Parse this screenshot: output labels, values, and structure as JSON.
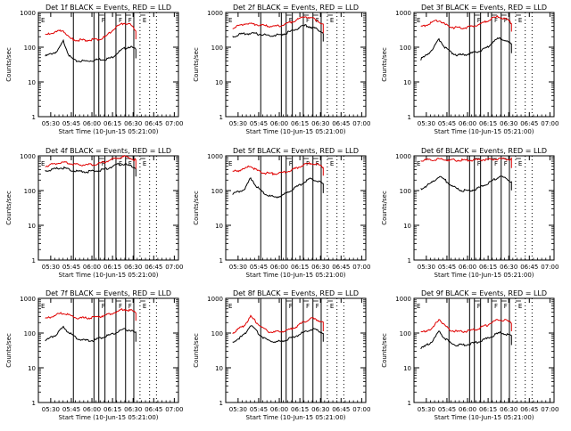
{
  "figure": {
    "background": "#ffffff",
    "axis_color": "#000000",
    "events_color": "#000000",
    "lld_color": "#e00000"
  },
  "chart_data": [
    {
      "type": "line",
      "title": "Det 1f BLACK = Events, RED = LLD",
      "xlabel": "Start Time (10-Jun-15 05:21:00)",
      "ylabel": "Counts/sec",
      "y_scale": "log",
      "ylim": [
        1,
        1000
      ],
      "y_ticks": [
        "1",
        "10",
        "100",
        "1000"
      ],
      "x_ticks": [
        "05:30",
        "05:45",
        "06:00",
        "06:15",
        "06:30",
        "06:45",
        "07:00"
      ],
      "solid_markers": [
        25.5,
        40.5,
        44,
        48.5,
        56.5,
        63.5,
        69.5
      ],
      "dotted_markers": [
        74,
        81,
        86
      ],
      "flag_letters": [
        "F",
        "F",
        "F",
        "E"
      ],
      "series": [
        {
          "name": "Events",
          "color": "#000000",
          "values": [
            55,
            65,
            75,
            150,
            55,
            40,
            40,
            40,
            42,
            45,
            45,
            50,
            70,
            90,
            105,
            85
          ]
        },
        {
          "name": "LLD",
          "color": "#e00000",
          "values": [
            220,
            250,
            280,
            300,
            180,
            160,
            160,
            160,
            165,
            170,
            200,
            300,
            400,
            500,
            450,
            300
          ]
        }
      ]
    },
    {
      "type": "line",
      "title": "Det 2f BLACK = Events, RED = LLD",
      "xlabel": "Start Time (10-Jun-15 05:21:00)",
      "ylabel": "Counts/sec",
      "y_scale": "log",
      "ylim": [
        1,
        1000
      ],
      "y_ticks": [
        "1",
        "10",
        "100",
        "1000"
      ],
      "x_ticks": [
        "05:30",
        "05:45",
        "06:00",
        "06:15",
        "06:30",
        "06:45",
        "07:00"
      ],
      "solid_markers": [
        25.5,
        40.5,
        44,
        48.5,
        56.5,
        63.5,
        69.5
      ],
      "dotted_markers": [
        74,
        81,
        86
      ],
      "flag_letters": [
        "F",
        "F",
        "F",
        "E"
      ],
      "series": [
        {
          "name": "Events",
          "color": "#000000",
          "values": [
            200,
            230,
            240,
            250,
            240,
            230,
            220,
            220,
            230,
            260,
            300,
            360,
            420,
            380,
            330,
            260
          ]
        },
        {
          "name": "LLD",
          "color": "#e00000",
          "values": [
            350,
            420,
            470,
            480,
            450,
            420,
            400,
            400,
            420,
            480,
            560,
            650,
            760,
            700,
            600,
            450
          ]
        }
      ]
    },
    {
      "type": "line",
      "title": "Det 3f BLACK = Events, RED = LLD",
      "xlabel": "Start Time (10-Jun-15 05:21:00)",
      "ylabel": "Counts/sec",
      "y_scale": "log",
      "ylim": [
        1,
        1000
      ],
      "y_ticks": [
        "1",
        "10",
        "100",
        "1000"
      ],
      "x_ticks": [
        "05:30",
        "05:45",
        "06:00",
        "06:15",
        "06:30",
        "06:45",
        "07:00"
      ],
      "solid_markers": [
        25.5,
        40.5,
        44,
        48.5,
        56.5,
        63.5,
        69.5
      ],
      "dotted_markers": [
        74,
        81,
        86
      ],
      "flag_letters": [
        "F",
        "F",
        "F",
        "E"
      ],
      "series": [
        {
          "name": "Events",
          "color": "#000000",
          "values": [
            45,
            60,
            90,
            170,
            100,
            70,
            60,
            60,
            65,
            70,
            80,
            100,
            150,
            180,
            160,
            120
          ]
        },
        {
          "name": "LLD",
          "color": "#e00000",
          "values": [
            380,
            450,
            520,
            600,
            450,
            380,
            360,
            360,
            380,
            420,
            480,
            560,
            700,
            750,
            650,
            500
          ]
        }
      ]
    },
    {
      "type": "line",
      "title": "Det 4f BLACK = Events, RED = LLD",
      "xlabel": "Start Time (10-Jun-15 05:21:00)",
      "ylabel": "Counts/sec",
      "y_scale": "log",
      "ylim": [
        1,
        1000
      ],
      "y_ticks": [
        "1",
        "10",
        "100",
        "1000"
      ],
      "x_ticks": [
        "05:30",
        "05:45",
        "06:00",
        "06:15",
        "06:30",
        "06:45",
        "07:00"
      ],
      "solid_markers": [
        25.5,
        40.5,
        44,
        48.5,
        56.5,
        63.5,
        69.5
      ],
      "dotted_markers": [
        74,
        81,
        86
      ],
      "flag_letters": [
        "F",
        "F",
        "F",
        "E"
      ],
      "series": [
        {
          "name": "Events",
          "color": "#000000",
          "values": [
            360,
            400,
            430,
            450,
            400,
            360,
            350,
            350,
            360,
            380,
            420,
            480,
            560,
            580,
            520,
            450
          ]
        },
        {
          "name": "LLD",
          "color": "#e00000",
          "values": [
            500,
            560,
            620,
            650,
            600,
            560,
            550,
            550,
            560,
            600,
            680,
            780,
            900,
            950,
            880,
            750
          ]
        }
      ]
    },
    {
      "type": "line",
      "title": "Det 5f BLACK = Events, RED = LLD",
      "xlabel": "Start Time (10-Jun-15 05:21:00)",
      "ylabel": "Counts/sec",
      "y_scale": "log",
      "ylim": [
        1,
        1000
      ],
      "y_ticks": [
        "1",
        "10",
        "100",
        "1000"
      ],
      "x_ticks": [
        "05:30",
        "05:45",
        "06:00",
        "06:15",
        "06:30",
        "06:45",
        "07:00"
      ],
      "solid_markers": [
        25.5,
        40.5,
        44,
        48.5,
        56.5,
        63.5,
        69.5
      ],
      "dotted_markers": [
        74,
        81,
        86
      ],
      "flag_letters": [
        "F",
        "F",
        "F",
        "E"
      ],
      "series": [
        {
          "name": "Events",
          "color": "#000000",
          "values": [
            80,
            95,
            110,
            230,
            130,
            90,
            70,
            65,
            70,
            85,
            110,
            140,
            180,
            220,
            190,
            150
          ]
        },
        {
          "name": "LLD",
          "color": "#e00000",
          "values": [
            350,
            380,
            420,
            520,
            380,
            330,
            310,
            310,
            320,
            350,
            400,
            480,
            560,
            620,
            560,
            480
          ]
        }
      ]
    },
    {
      "type": "line",
      "title": "Det 6f BLACK = Events, RED = LLD",
      "xlabel": "Start Time (10-Jun-15 05:21:00)",
      "ylabel": "Counts/sec",
      "y_scale": "log",
      "ylim": [
        1,
        1000
      ],
      "y_ticks": [
        "1",
        "10",
        "100",
        "1000"
      ],
      "x_ticks": [
        "05:30",
        "05:45",
        "06:00",
        "06:15",
        "06:30",
        "06:45",
        "07:00"
      ],
      "solid_markers": [
        25.5,
        40.5,
        44,
        48.5,
        56.5,
        63.5,
        69.5
      ],
      "dotted_markers": [
        74,
        81,
        86
      ],
      "flag_letters": [
        "F",
        "F",
        "F",
        "E"
      ],
      "series": [
        {
          "name": "Events",
          "color": "#000000",
          "values": [
            110,
            140,
            180,
            250,
            200,
            140,
            110,
            100,
            100,
            110,
            130,
            160,
            200,
            260,
            230,
            180
          ]
        },
        {
          "name": "LLD",
          "color": "#e00000",
          "values": [
            750,
            760,
            780,
            800,
            780,
            760,
            750,
            750,
            750,
            760,
            770,
            780,
            800,
            820,
            810,
            790
          ]
        }
      ]
    },
    {
      "type": "line",
      "title": "Det 7f BLACK = Events, RED = LLD",
      "xlabel": "Start Time (10-Jun-15 05:21:00)",
      "ylabel": "Counts/sec",
      "y_scale": "log",
      "ylim": [
        1,
        1000
      ],
      "y_ticks": [
        "1",
        "10",
        "100",
        "1000"
      ],
      "x_ticks": [
        "05:30",
        "05:45",
        "06:00",
        "06:15",
        "06:30",
        "06:45",
        "07:00"
      ],
      "solid_markers": [
        25.5,
        40.5,
        44,
        48.5,
        56.5,
        63.5,
        69.5
      ],
      "dotted_markers": [
        74,
        81,
        86
      ],
      "flag_letters": [
        "F",
        "F",
        "F",
        "E"
      ],
      "series": [
        {
          "name": "Events",
          "color": "#000000",
          "values": [
            60,
            75,
            95,
            150,
            100,
            75,
            65,
            60,
            62,
            70,
            80,
            90,
            110,
            130,
            120,
            100
          ]
        },
        {
          "name": "LLD",
          "color": "#e00000",
          "values": [
            250,
            300,
            340,
            380,
            320,
            280,
            270,
            270,
            280,
            300,
            330,
            370,
            420,
            480,
            450,
            400
          ]
        }
      ]
    },
    {
      "type": "line",
      "title": "Det 8f BLACK = Events, RED = LLD",
      "xlabel": "Start Time (10-Jun-15 05:21:00)",
      "ylabel": "Counts/sec",
      "y_scale": "log",
      "ylim": [
        1,
        1000
      ],
      "y_ticks": [
        "1",
        "10",
        "100",
        "1000"
      ],
      "x_ticks": [
        "05:30",
        "05:45",
        "06:00",
        "06:15",
        "06:30",
        "06:45",
        "07:00"
      ],
      "solid_markers": [
        25.5,
        40.5,
        44,
        48.5,
        56.5,
        63.5,
        69.5
      ],
      "dotted_markers": [
        74,
        81,
        86
      ],
      "flag_letters": [
        "F",
        "F",
        "F",
        "E"
      ],
      "series": [
        {
          "name": "Events",
          "color": "#000000",
          "values": [
            55,
            70,
            90,
            170,
            110,
            75,
            60,
            55,
            58,
            65,
            75,
            90,
            110,
            130,
            120,
            100
          ]
        },
        {
          "name": "LLD",
          "color": "#e00000",
          "values": [
            100,
            130,
            170,
            300,
            200,
            140,
            110,
            105,
            110,
            120,
            140,
            170,
            220,
            260,
            240,
            200
          ]
        }
      ]
    },
    {
      "type": "line",
      "title": "Det 9f BLACK = Events, RED = LLD",
      "xlabel": "Start Time (10-Jun-15 05:21:00)",
      "ylabel": "Counts/sec",
      "y_scale": "log",
      "ylim": [
        1,
        1000
      ],
      "y_ticks": [
        "1",
        "10",
        "100",
        "1000"
      ],
      "x_ticks": [
        "05:30",
        "05:45",
        "06:00",
        "06:15",
        "06:30",
        "06:45",
        "07:00"
      ],
      "solid_markers": [
        25.5,
        40.5,
        44,
        48.5,
        56.5,
        63.5,
        69.5
      ],
      "dotted_markers": [
        74,
        81,
        86
      ],
      "flag_letters": [
        "F",
        "F",
        "F",
        "E"
      ],
      "series": [
        {
          "name": "Events",
          "color": "#000000",
          "values": [
            35,
            45,
            60,
            110,
            70,
            50,
            45,
            45,
            48,
            52,
            60,
            70,
            85,
            100,
            95,
            80
          ]
        },
        {
          "name": "LLD",
          "color": "#e00000",
          "values": [
            100,
            120,
            140,
            260,
            160,
            120,
            110,
            110,
            115,
            125,
            145,
            170,
            210,
            250,
            230,
            200
          ]
        }
      ]
    }
  ]
}
